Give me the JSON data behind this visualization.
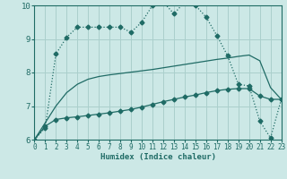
{
  "background_color": "#cce8e6",
  "grid_color": "#aacfcc",
  "line_color": "#1f6b65",
  "xlabel": "Humidex (Indice chaleur)",
  "xlim": [
    0,
    23
  ],
  "ylim": [
    6,
    10
  ],
  "yticks": [
    6,
    7,
    8,
    9,
    10
  ],
  "xticks": [
    0,
    1,
    2,
    3,
    4,
    5,
    6,
    7,
    8,
    9,
    10,
    11,
    12,
    13,
    14,
    15,
    16,
    17,
    18,
    19,
    20,
    21,
    22,
    23
  ],
  "line1_x": [
    0,
    1,
    2,
    3,
    4,
    5,
    6,
    7,
    8,
    9,
    10,
    11,
    12,
    13,
    14,
    15,
    16,
    17,
    18,
    19,
    20,
    21,
    22,
    23
  ],
  "line1_y": [
    6.0,
    6.4,
    6.6,
    6.65,
    6.68,
    6.72,
    6.76,
    6.8,
    6.85,
    6.9,
    6.97,
    7.05,
    7.13,
    7.2,
    7.27,
    7.33,
    7.4,
    7.46,
    7.5,
    7.52,
    7.52,
    7.3,
    7.2,
    7.2
  ],
  "line2_x": [
    0,
    1,
    2,
    3,
    4,
    5,
    6,
    7,
    8,
    9,
    10,
    11,
    12,
    13,
    14,
    15,
    16,
    17,
    18,
    19,
    20,
    21,
    22,
    23
  ],
  "line2_y": [
    6.0,
    6.5,
    7.0,
    7.4,
    7.65,
    7.8,
    7.88,
    7.93,
    7.97,
    8.01,
    8.05,
    8.09,
    8.14,
    8.19,
    8.24,
    8.29,
    8.34,
    8.39,
    8.43,
    8.48,
    8.52,
    8.35,
    7.55,
    7.2
  ],
  "line3_x": [
    0,
    1,
    2,
    3,
    4,
    5,
    6,
    7,
    8,
    9,
    10,
    11,
    12,
    13,
    14,
    15,
    16,
    17,
    18,
    19,
    20,
    21,
    22,
    23
  ],
  "line3_y": [
    6.0,
    6.35,
    8.55,
    9.05,
    9.35,
    9.35,
    9.35,
    9.35,
    9.35,
    9.2,
    9.5,
    10.0,
    10.1,
    9.75,
    10.1,
    10.0,
    9.65,
    9.1,
    8.5,
    7.65,
    7.6,
    6.55,
    6.05,
    7.2
  ]
}
